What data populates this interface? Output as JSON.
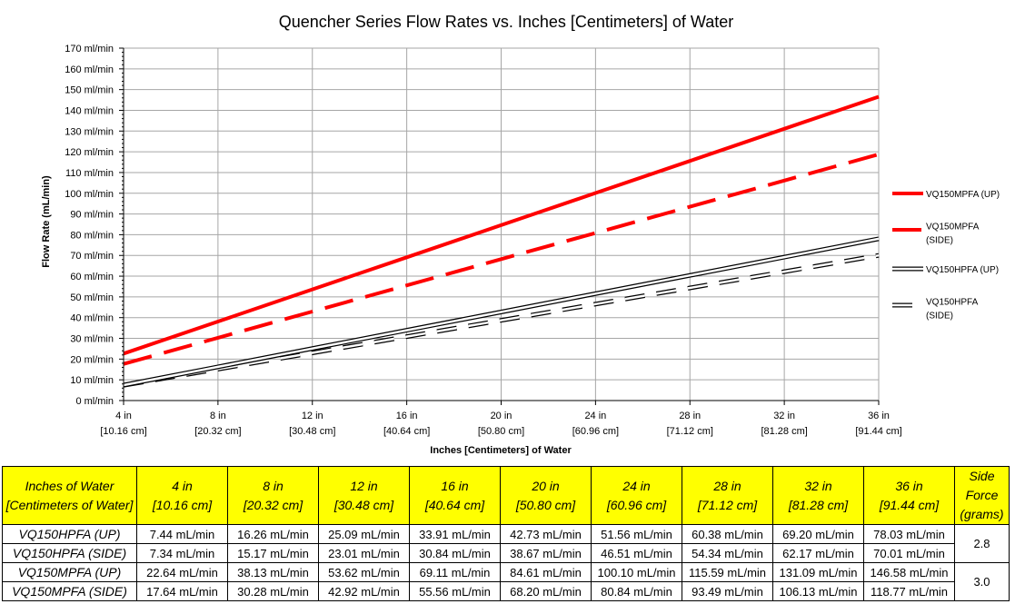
{
  "chart_data": {
    "type": "line",
    "title": "Quencher Series Flow Rates vs. Inches [Centimeters] of Water",
    "xlabel": "Inches [Centimeters] of Water",
    "ylabel": "Flow Rate (mL/min)",
    "x": [
      4,
      8,
      12,
      16,
      20,
      24,
      28,
      32,
      36
    ],
    "xlim": [
      4,
      36
    ],
    "ylim": [
      0,
      170
    ],
    "ytick_step": 10,
    "xtick_labels": [
      [
        "4 in",
        "[10.16 cm]"
      ],
      [
        "8 in",
        "[20.32 cm]"
      ],
      [
        "12 in",
        "[30.48 cm]"
      ],
      [
        "16 in",
        "[40.64 cm]"
      ],
      [
        "20 in",
        "[50.80 cm]"
      ],
      [
        "24 in",
        "[60.96 cm]"
      ],
      [
        "28 in",
        "[71.12 cm]"
      ],
      [
        "32 in",
        "[81.28 cm]"
      ],
      [
        "36 in",
        "[91.44 cm]"
      ]
    ],
    "ytick_labels": [
      "0 ml/min",
      "10 ml/min",
      "20 ml/min",
      "30 ml/min",
      "40 ml/min",
      "50 ml/min",
      "60 ml/min",
      "70 ml/min",
      "80 ml/min",
      "90 ml/min",
      "100 ml/min",
      "110 ml/min",
      "120 ml/min",
      "130 ml/min",
      "140 ml/min",
      "150 ml/min",
      "160 ml/min",
      "170 ml/min"
    ],
    "grid": true,
    "legend_position": "right",
    "series": [
      {
        "name": "VQ150MPFA (UP)",
        "legend_lines": [
          "VQ150MPFA (UP)"
        ],
        "style": "solid-red",
        "color": "#ff0000",
        "values": [
          22.64,
          38.13,
          53.62,
          69.11,
          84.61,
          100.1,
          115.59,
          131.09,
          146.58
        ]
      },
      {
        "name": "VQ150MPFA (SIDE)",
        "legend_lines": [
          "VQ150MPFA",
          "(SIDE)"
        ],
        "style": "dashed-red",
        "color": "#ff0000",
        "values": [
          17.64,
          30.28,
          42.92,
          55.56,
          68.2,
          80.84,
          93.49,
          106.13,
          118.77
        ]
      },
      {
        "name": "VQ150HPFA (UP)",
        "legend_lines": [
          "VQ150HPFA (UP)"
        ],
        "style": "solid-hollow",
        "color": "#000000",
        "values": [
          7.44,
          16.26,
          25.09,
          33.91,
          42.73,
          51.56,
          60.38,
          69.2,
          78.03
        ]
      },
      {
        "name": "VQ150HPFA (SIDE)",
        "legend_lines": [
          "VQ150HPFA",
          "(SIDE)"
        ],
        "style": "dashed-hollow",
        "color": "#000000",
        "values": [
          7.34,
          15.17,
          23.01,
          30.84,
          38.67,
          46.51,
          54.34,
          62.17,
          70.01
        ]
      }
    ]
  },
  "table": {
    "header_first": [
      "Inches of Water",
      "[Centimeters of Water]"
    ],
    "columns": [
      [
        "4 in",
        "[10.16 cm]"
      ],
      [
        "8 in",
        "[20.32 cm]"
      ],
      [
        "12 in",
        "[30.48 cm]"
      ],
      [
        "16 in",
        "[40.64 cm]"
      ],
      [
        "20 in",
        "[50.80 cm]"
      ],
      [
        "24 in",
        "[60.96 cm]"
      ],
      [
        "28 in",
        "[71.12 cm]"
      ],
      [
        "32 in",
        "[81.28 cm]"
      ],
      [
        "36 in",
        "[91.44 cm]"
      ]
    ],
    "header_last": [
      "Side",
      "Force",
      "(grams)"
    ],
    "rows": [
      {
        "label": "VQ150HPFA (UP)",
        "cells": [
          "7.44 mL/min",
          "16.26 mL/min",
          "25.09 mL/min",
          "33.91 mL/min",
          "42.73 mL/min",
          "51.56 mL/min",
          "60.38 mL/min",
          "69.20 mL/min",
          "78.03 mL/min"
        ]
      },
      {
        "label": "VQ150HPFA (SIDE)",
        "cells": [
          "7.34 mL/min",
          "15.17 mL/min",
          "23.01 mL/min",
          "30.84 mL/min",
          "38.67 mL/min",
          "46.51 mL/min",
          "54.34 mL/min",
          "62.17 mL/min",
          "70.01 mL/min"
        ]
      },
      {
        "label": "VQ150MPFA (UP)",
        "cells": [
          "22.64 mL/min",
          "38.13 mL/min",
          "53.62 mL/min",
          "69.11 mL/min",
          "84.61 mL/min",
          "100.10 mL/min",
          "115.59 mL/min",
          "131.09 mL/min",
          "146.58 mL/min"
        ]
      },
      {
        "label": "VQ150MPFA (SIDE)",
        "cells": [
          "17.64 mL/min",
          "30.28 mL/min",
          "42.92 mL/min",
          "55.56 mL/min",
          "68.20 mL/min",
          "80.84 mL/min",
          "93.49 mL/min",
          "106.13 mL/min",
          "118.77 mL/min"
        ]
      }
    ],
    "side_force": [
      "2.8",
      "3.0"
    ]
  }
}
